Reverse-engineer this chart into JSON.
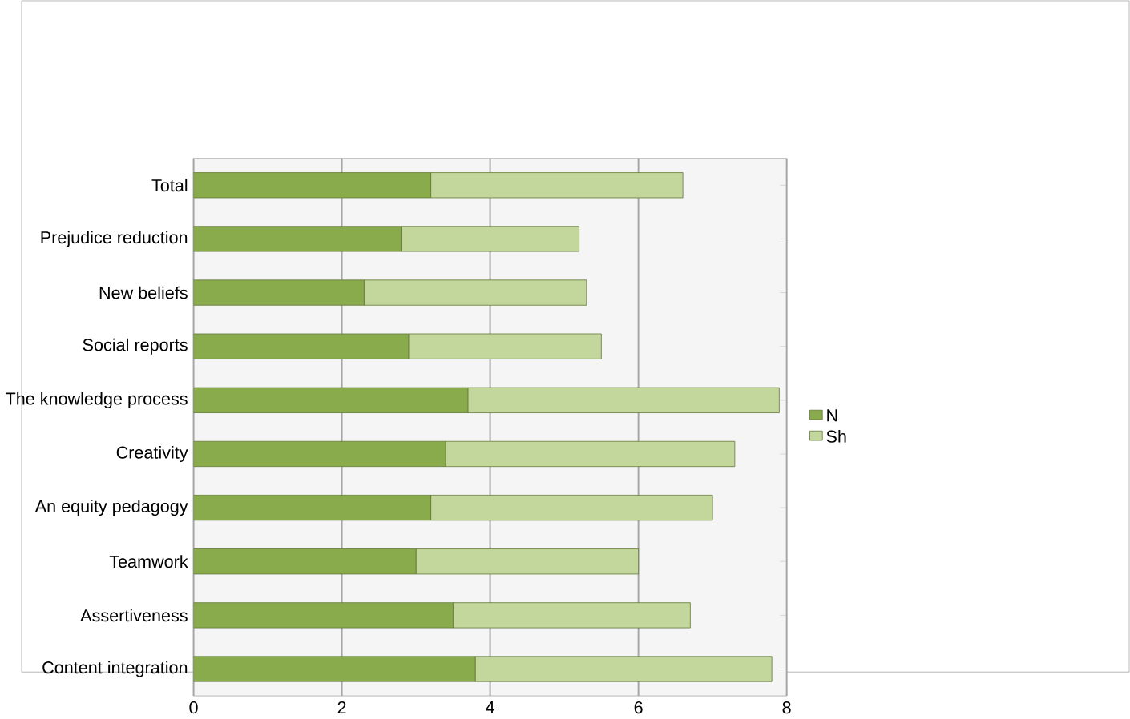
{
  "chart_data": {
    "type": "bar",
    "orientation": "horizontal",
    "stacked": true,
    "categories": [
      "Total",
      "Prejudice reduction",
      "New beliefs",
      "Social reports",
      "The knowledge process",
      "Creativity",
      "An equity pedagogy",
      "Teamwork",
      "Assertiveness",
      "Content integration"
    ],
    "series": [
      {
        "name": "N",
        "color": "#8aab4c",
        "values": [
          3.2,
          2.8,
          2.3,
          2.9,
          3.7,
          3.4,
          3.2,
          3.0,
          3.5,
          3.8
        ]
      },
      {
        "name": "Sh",
        "color": "#c3d69b",
        "values": [
          3.4,
          2.4,
          3.0,
          2.6,
          4.2,
          3.9,
          3.8,
          3.0,
          3.2,
          4.0
        ]
      }
    ],
    "xlim": [
      0,
      8
    ],
    "xticks": [
      0,
      2,
      4,
      6,
      8
    ],
    "grid": "x",
    "legend": "right"
  }
}
